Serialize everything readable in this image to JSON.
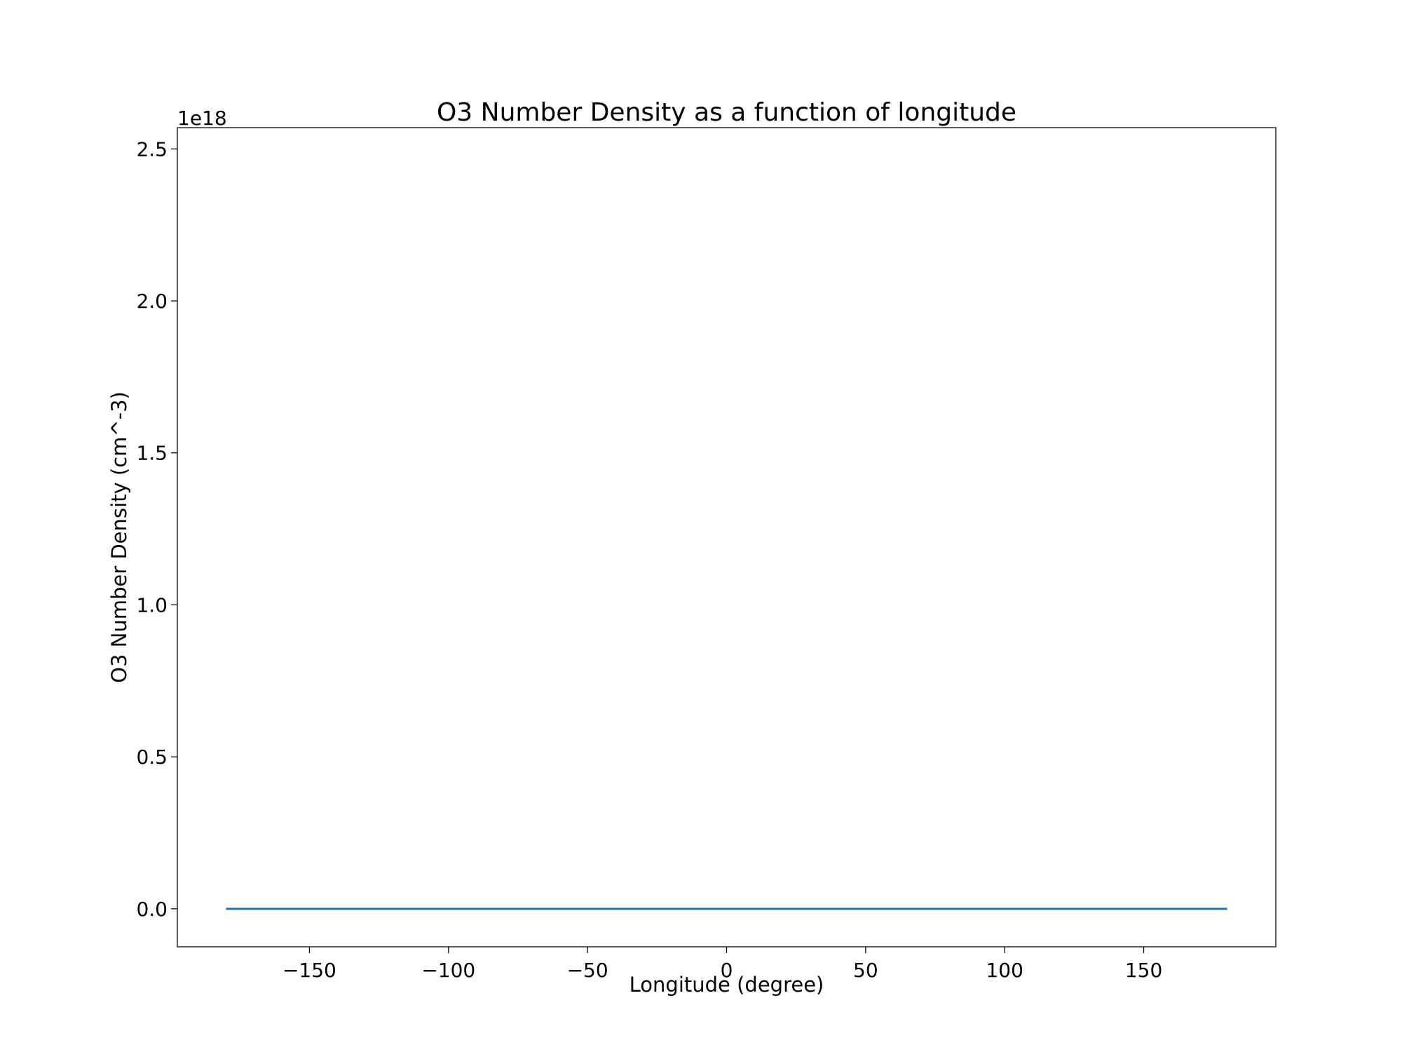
{
  "chart_data": {
    "type": "line",
    "title": "O3 Number Density as a function of longitude",
    "xlabel": "Longitude (degree)",
    "ylabel": "O3 Number Density (cm^-3)",
    "y_offset_label": "1e18",
    "xlim": [
      -197.5,
      197.5
    ],
    "ylim": [
      -0.125,
      2.57
    ],
    "x_ticks": [
      -150,
      -100,
      -50,
      0,
      50,
      100,
      150
    ],
    "x_tick_labels": [
      "−150",
      "−100",
      "−50",
      "0",
      "50",
      "100",
      "150"
    ],
    "y_ticks": [
      0.0,
      0.5,
      1.0,
      1.5,
      2.0,
      2.5
    ],
    "y_tick_labels": [
      "0.0",
      "0.5",
      "1.0",
      "1.5",
      "2.0",
      "2.5"
    ],
    "grid": false,
    "series": [
      {
        "name": "O3",
        "color": "#1f77b4",
        "x": [
          -180,
          -150,
          -120,
          -90,
          -60,
          -30,
          0,
          30,
          60,
          90,
          120,
          150,
          180
        ],
        "y": [
          0.0,
          0.0,
          0.0,
          0.0,
          0.0,
          0.0,
          0.0,
          0.0,
          0.0,
          0.0,
          0.0,
          0.0,
          0.0
        ]
      }
    ]
  }
}
